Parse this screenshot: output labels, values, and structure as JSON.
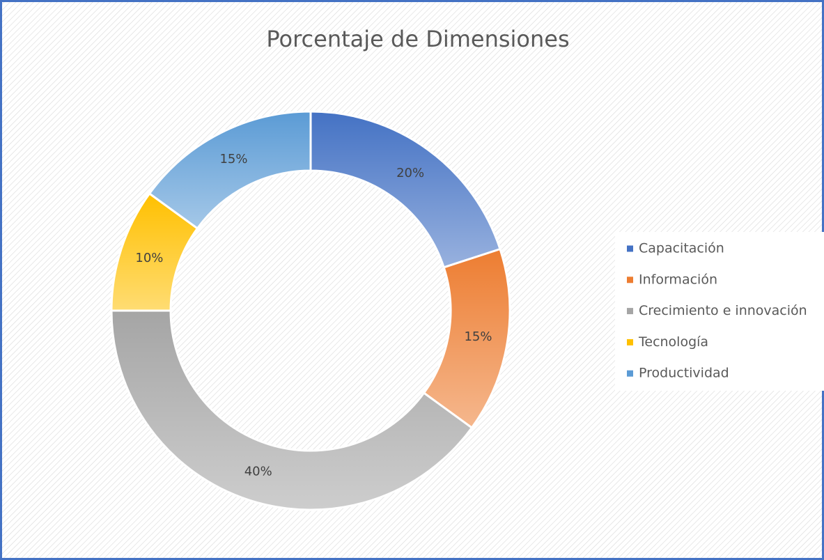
{
  "chart_data": {
    "type": "donut",
    "title": "Porcentaje de Dimensiones",
    "categories": [
      "Capacitación",
      "Información",
      "Crecimiento e innovación",
      "Tecnología",
      "Productividad"
    ],
    "values": [
      20,
      15,
      40,
      10,
      15
    ],
    "value_labels": [
      "20%",
      "15%",
      "40%",
      "10%",
      "15%"
    ],
    "colors": [
      "#4472c4",
      "#ed7d31",
      "#a5a5a5",
      "#ffc000",
      "#5b9bd5"
    ],
    "legend": "right"
  }
}
